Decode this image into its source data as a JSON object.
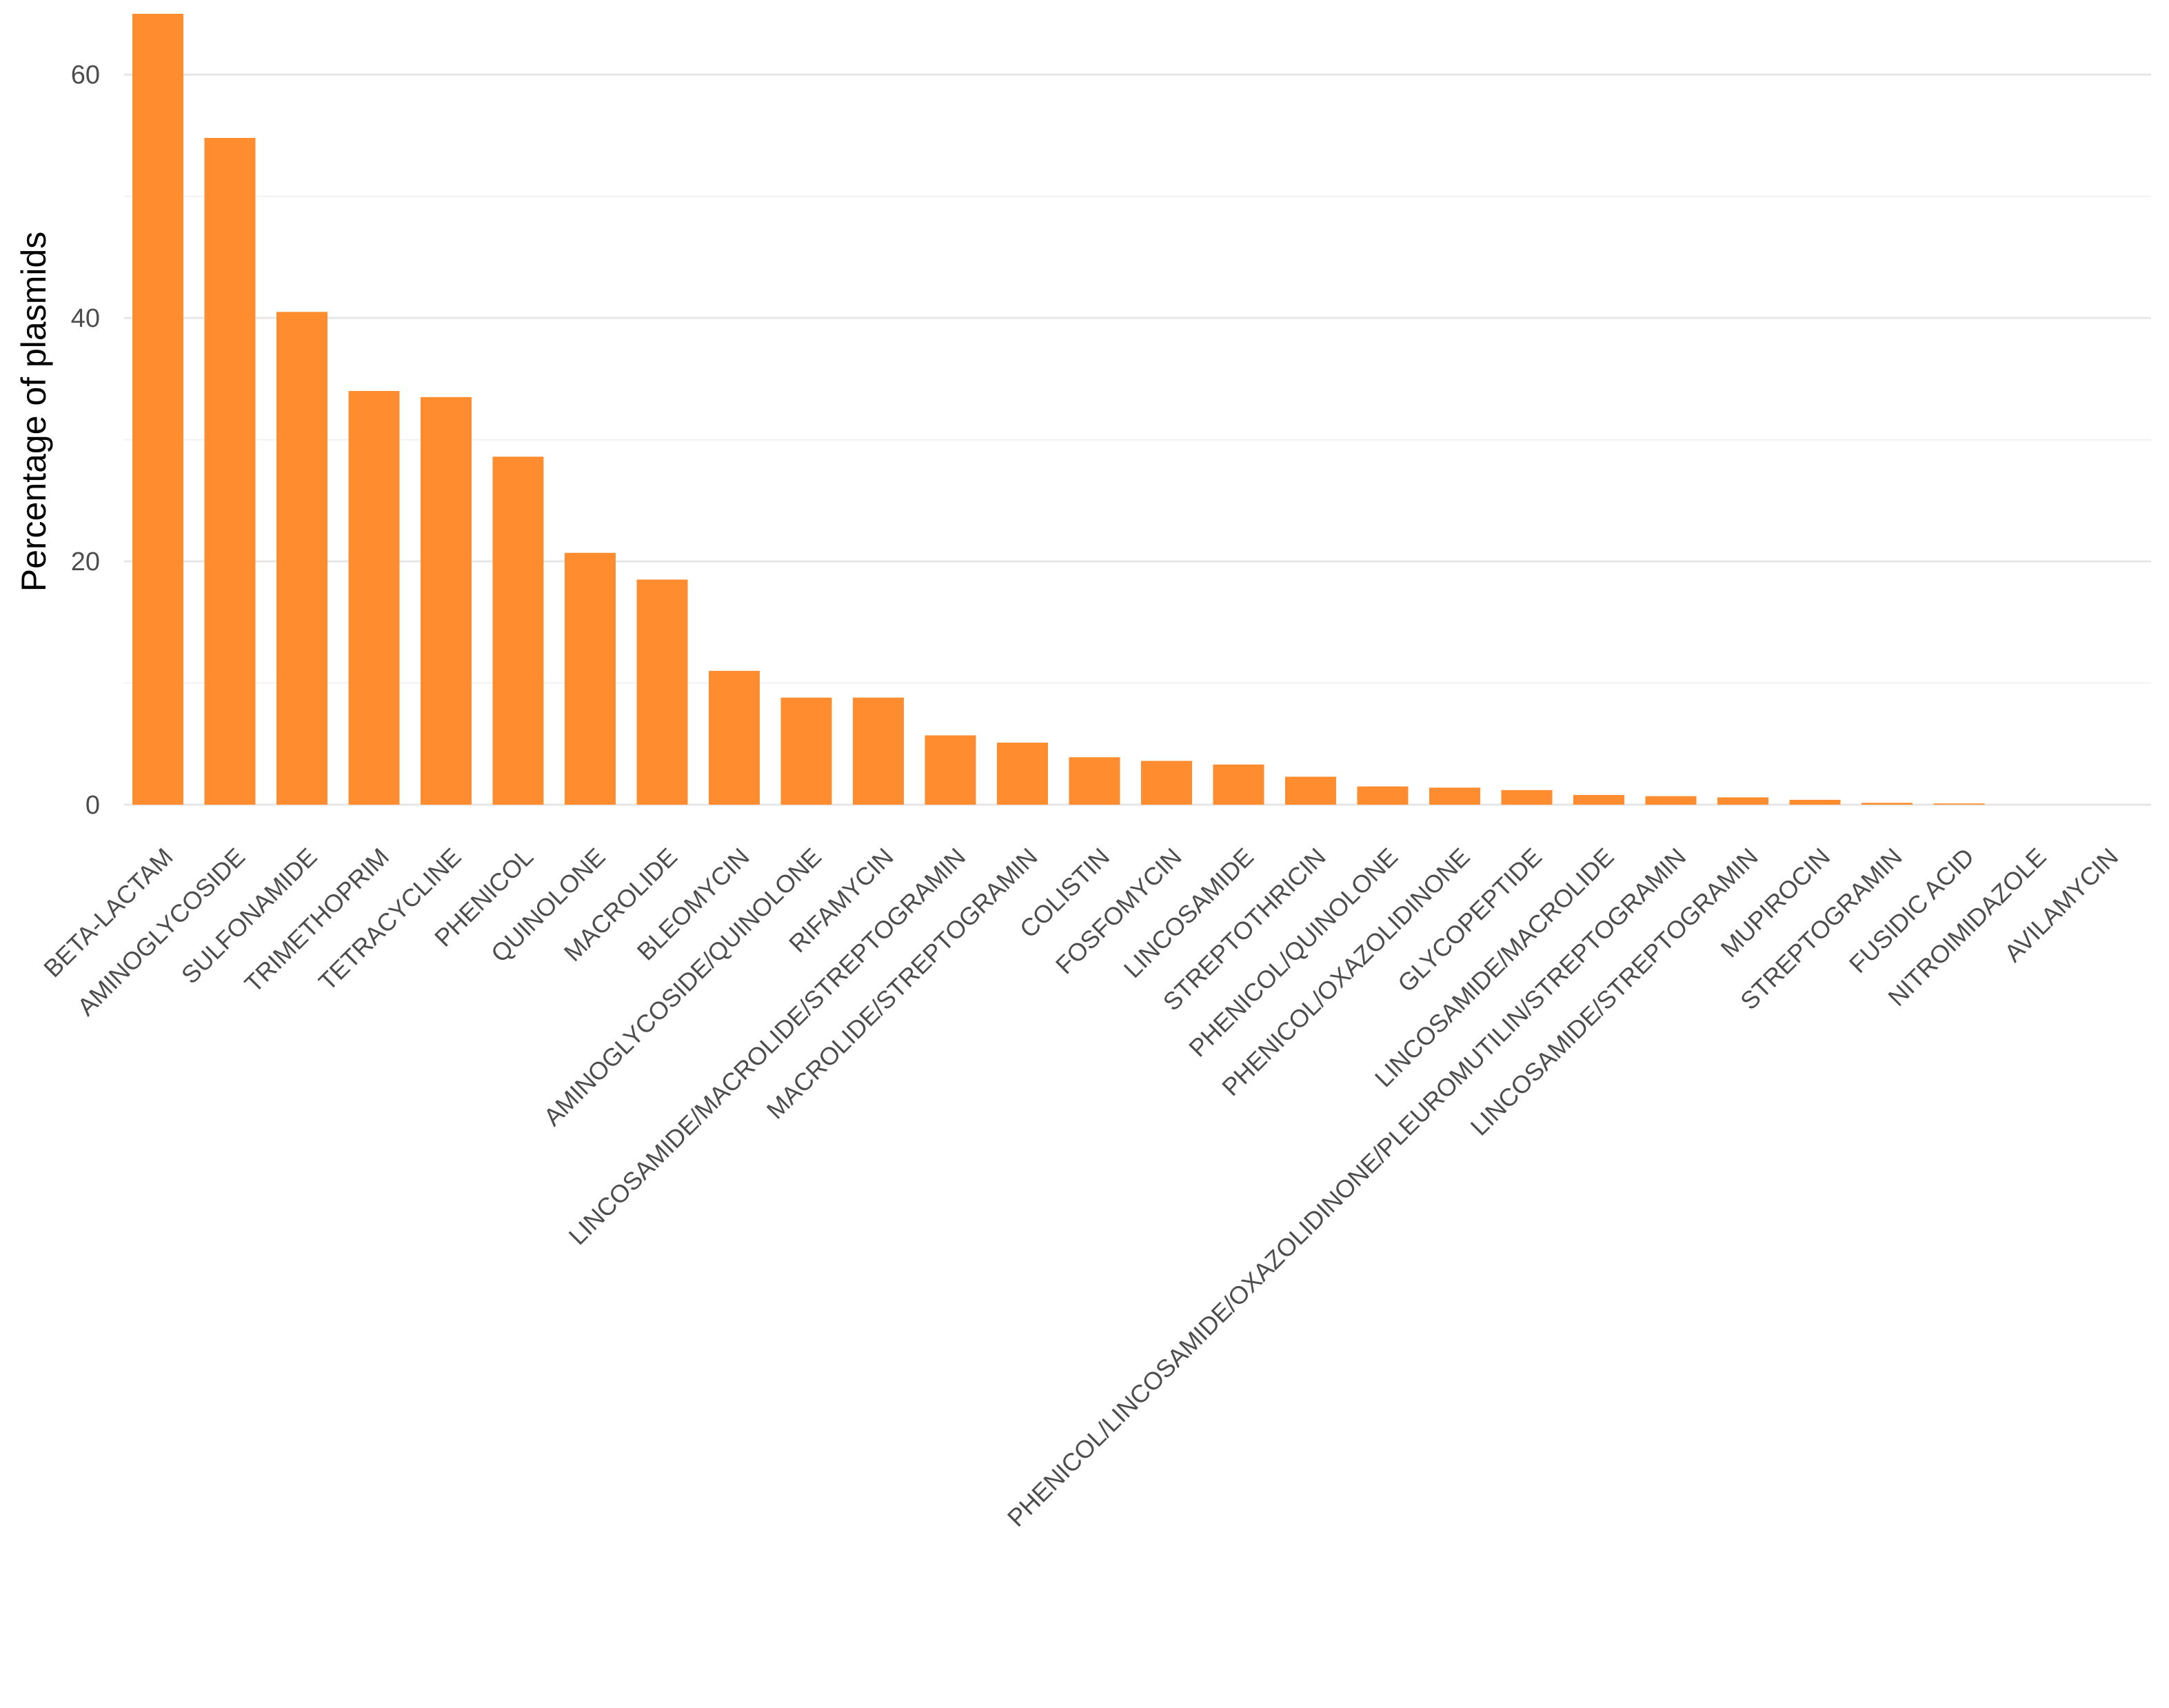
{
  "colors": {
    "bar": "#FF8C2E",
    "grid_major": "#e6e6e6",
    "grid_minor": "#f2f2f2",
    "axis_text": "#4d4d4d",
    "background": "#ffffff"
  },
  "chart_data": {
    "type": "bar",
    "title": "",
    "xlabel": "",
    "ylabel": "Percentage of plasmids",
    "ylim": [
      0,
      65
    ],
    "yticks": [
      0,
      20,
      40,
      60
    ],
    "grid": true,
    "legend": "none",
    "categories": [
      "BETA-LACTAM",
      "AMINOGLYCOSIDE",
      "SULFONAMIDE",
      "TRIMETHOPRIM",
      "TETRACYCLINE",
      "PHENICOL",
      "QUINOLONE",
      "MACROLIDE",
      "BLEOMYCIN",
      "AMINOGLYCOSIDE/QUINOLONE",
      "RIFAMYCIN",
      "LINCOSAMIDE/MACROLIDE/STREPTOGRAMIN",
      "MACROLIDE/STREPTOGRAMIN",
      "COLISTIN",
      "FOSFOMYCIN",
      "LINCOSAMIDE",
      "STREPTOTHRICIN",
      "PHENICOL/QUINOLONE",
      "PHENICOL/OXAZOLIDINONE",
      "GLYCOPEPTIDE",
      "LINCOSAMIDE/MACROLIDE",
      "PHENICOL/LINCOSAMIDE/OXAZOLIDINONE/PLEUROMUTILIN/STREPTOGRAMIN",
      "LINCOSAMIDE/STREPTOGRAMIN",
      "MUPIROCIN",
      "STREPTOGRAMIN",
      "FUSIDIC ACID",
      "NITROIMIDAZOLE",
      "AVILAMYCIN"
    ],
    "values": [
      65.0,
      54.8,
      40.5,
      34.0,
      33.5,
      28.6,
      20.7,
      18.5,
      11.0,
      8.8,
      8.8,
      5.7,
      5.1,
      3.9,
      3.6,
      3.3,
      2.3,
      1.5,
      1.4,
      1.2,
      0.8,
      0.7,
      0.6,
      0.4,
      0.15,
      0.1,
      0.0,
      0.0
    ]
  }
}
